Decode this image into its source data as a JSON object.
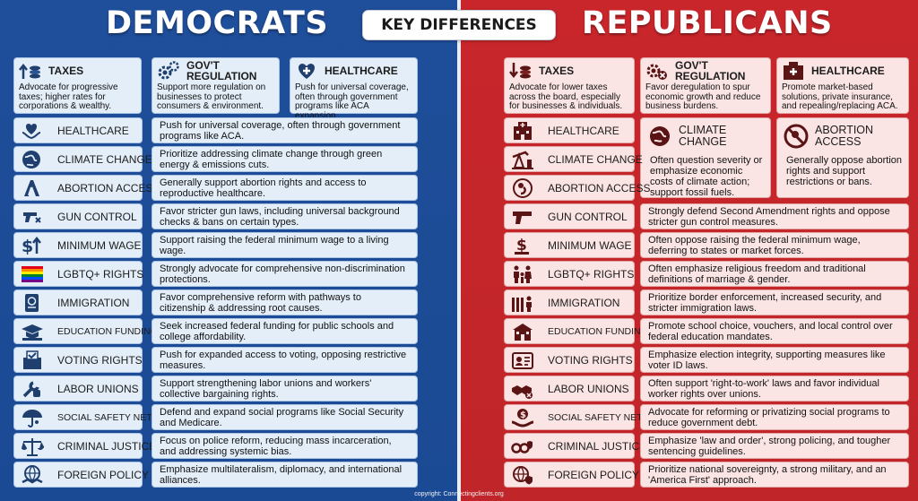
{
  "header": {
    "left_title": "DEMOCRATS",
    "right_title": "REPUBLICANS",
    "center_label": "KEY DIFFERENCES"
  },
  "democrats": {
    "top": [
      {
        "icon": "arrow-up-coins-icon",
        "title": "TAXES",
        "desc": "Advocate for progressive taxes; higher rates for corporations & wealthy."
      },
      {
        "icon": "gears-icon",
        "title": "GOV'T REGULATION",
        "desc": "Support more regulation on businesses to protect consumers & environment."
      },
      {
        "icon": "medical-heart-icon",
        "title": "HEALTHCARE",
        "desc": "Push for universal coverage, often through government programs like ACA expansion."
      }
    ],
    "rows": [
      {
        "icon": "heart-hands-icon",
        "label": "HEALTHCARE",
        "text": "Push for universal coverage, often through government programs like ACA."
      },
      {
        "icon": "globe-leaf-icon",
        "label": "CLIMATE CHANGE",
        "text": "Prioritize addressing climate change through green energy & emissions cuts."
      },
      {
        "icon": "abortion-symbol-icon",
        "label": "ABORTION ACCESS",
        "text": "Generally support abortion rights and access to reproductive healthcare."
      },
      {
        "icon": "gun-cross-icon",
        "label": "GUN CONTROL",
        "text": "Favor stricter gun laws, including universal background checks & bans on certain types."
      },
      {
        "icon": "dollar-up-icon",
        "label": "MINIMUM WAGE",
        "text": "Support raising the federal minimum wage to a living wage."
      },
      {
        "icon": "rainbow-flag-icon",
        "label": "LGBTQ+ RIGHTS",
        "text": "Strongly advocate for comprehensive non-discrimination protections."
      },
      {
        "icon": "passport-icon",
        "label": "IMMIGRATION",
        "text": "Favor comprehensive reform with pathways to citizenship & addressing root causes."
      },
      {
        "icon": "graduation-cap-icon",
        "label": "EDUCATION FUNDING",
        "text": "Seek increased federal funding for public schools and college affordability."
      },
      {
        "icon": "ballot-box-icon",
        "label": "VOTING RIGHTS",
        "text": "Push for expanded access to voting, opposing restrictive measures."
      },
      {
        "icon": "wrench-fist-icon",
        "label": "LABOR UNIONS",
        "text": "Support strengthening labor unions and workers' collective bargaining rights."
      },
      {
        "icon": "umbrella-people-icon",
        "label": "SOCIAL SAFETY NET",
        "text": "Defend and expand social programs like Social Security and Medicare."
      },
      {
        "icon": "scales-icon",
        "label": "CRIMINAL JUSTICE",
        "text": "Focus on police reform, reducing mass incarceration, and addressing systemic bias."
      },
      {
        "icon": "globe-handshake-icon",
        "label": "FOREIGN POLICY",
        "text": "Emphasize multilateralism, diplomacy, and international alliances."
      }
    ]
  },
  "republicans": {
    "top": [
      {
        "icon": "arrow-down-coins-icon",
        "title": "TAXES",
        "desc": "Advocate for lower taxes across the board, especially for businesses & individuals."
      },
      {
        "icon": "gears-cross-icon",
        "title": "GOV'T REGULATION",
        "desc": "Favor deregulation to spur economic growth and reduce business burdens."
      },
      {
        "icon": "hospital-icon",
        "title": "HEALTHCARE",
        "desc": "Promote market-based solutions, private insurance, and repealing/replacing ACA."
      }
    ],
    "rows": [
      {
        "icon": "hospital-building-icon",
        "label": "HEALTHCARE"
      },
      {
        "icon": "oil-pump-icon",
        "label": "CLIMATE CHANGE"
      },
      {
        "icon": "fetus-icon",
        "label": "ABORTION ACCESS"
      },
      {
        "icon": "handgun-icon",
        "label": "GUN CONTROL",
        "text": "Strongly defend Second Amendment rights and oppose stricter gun control measures."
      },
      {
        "icon": "dollar-down-icon",
        "label": "MINIMUM WAGE",
        "text": "Often oppose raising the federal minimum wage, deferring to states or market forces."
      },
      {
        "icon": "family-icon",
        "label": "LGBTQ+ RIGHTS",
        "text": "Often emphasize religious freedom and traditional definitions of marriage & gender."
      },
      {
        "icon": "border-wall-icon",
        "label": "IMMIGRATION",
        "text": "Prioritize border enforcement, increased security, and stricter immigration laws."
      },
      {
        "icon": "school-house-icon",
        "label": "EDUCATION FUNDING",
        "text": "Promote school choice, vouchers, and local control over federal education mandates."
      },
      {
        "icon": "voter-id-icon",
        "label": "VOTING RIGHTS",
        "text": "Emphasize election integrity, supporting measures like voter ID laws."
      },
      {
        "icon": "handshake-cross-icon",
        "label": "LABOR UNIONS",
        "text": "Often support 'right-to-work' laws and favor individual worker rights over unions."
      },
      {
        "icon": "dollar-hands-icon",
        "label": "SOCIAL SAFETY NET",
        "text": "Advocate for reforming or privatizing social programs to reduce government debt."
      },
      {
        "icon": "handcuffs-badge-icon",
        "label": "CRIMINAL JUSTICE",
        "text": "Emphasize 'law and order', strong policing, and tougher sentencing guidelines."
      },
      {
        "icon": "globe-shield-icon",
        "label": "FOREIGN POLICY",
        "text": "Prioritize national sovereignty, a strong military, and an 'America First' approach."
      }
    ],
    "big_cards": [
      {
        "icon": "globe-industry-icon",
        "title": "CLIMATE CHANGE",
        "desc": "Often question severity or emphasize economic costs of climate action; support fossil fuels."
      },
      {
        "icon": "no-abortion-icon",
        "title": "ABORTION ACCESS",
        "desc": "Generally oppose abortion rights and support restrictions or bans."
      }
    ]
  },
  "footer": {
    "copyright": "copyright: Connectingclients.org"
  },
  "colors": {
    "dem_bg": "#1f4e9a",
    "rep_bg": "#c8262b",
    "dem_card": "#e3eef9",
    "rep_card": "#fbe5e4"
  }
}
